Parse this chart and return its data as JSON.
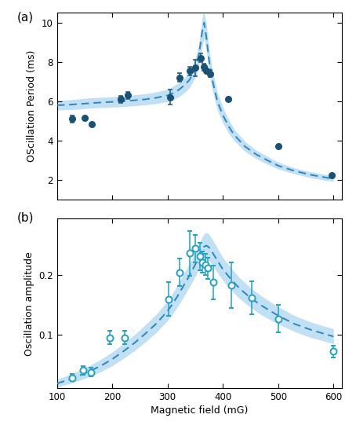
{
  "panel_a": {
    "data_x": [
      127,
      150,
      163,
      215,
      228,
      305,
      322,
      340,
      350,
      360,
      365,
      370,
      377,
      410,
      500,
      597
    ],
    "data_y": [
      5.1,
      5.15,
      4.85,
      6.1,
      6.3,
      6.2,
      7.2,
      7.55,
      7.7,
      8.2,
      7.75,
      7.55,
      7.4,
      6.1,
      3.7,
      2.25
    ],
    "data_yerr": [
      0.18,
      0.0,
      0.0,
      0.18,
      0.18,
      0.38,
      0.22,
      0.22,
      0.42,
      0.22,
      0.18,
      0.12,
      0.18,
      0.0,
      0.0,
      0.0
    ],
    "ylabel": "OScillation Period (ms)",
    "ylim": [
      1.0,
      10.5
    ],
    "yticks": [
      2,
      4,
      6,
      8,
      10
    ],
    "label": "(a)",
    "dot_color": "#1a5276",
    "theory_color": "#2e86c1",
    "band_color": "#aed6f1",
    "theory_x": [
      100,
      120,
      140,
      160,
      180,
      200,
      220,
      240,
      260,
      280,
      300,
      310,
      320,
      330,
      340,
      348,
      352,
      356,
      360,
      363,
      366,
      370,
      375,
      380,
      390,
      400,
      410,
      420,
      440,
      460,
      480,
      500,
      530,
      560,
      580,
      600
    ],
    "theory_y": [
      5.8,
      5.82,
      5.86,
      5.9,
      5.94,
      5.97,
      6.0,
      6.05,
      6.1,
      6.18,
      6.3,
      6.42,
      6.58,
      6.8,
      7.1,
      7.55,
      7.85,
      8.3,
      9.0,
      9.6,
      10.0,
      9.3,
      8.1,
      7.2,
      6.0,
      5.3,
      4.75,
      4.3,
      3.7,
      3.3,
      3.0,
      2.72,
      2.45,
      2.25,
      2.15,
      2.05
    ],
    "band_y_low": [
      5.55,
      5.57,
      5.6,
      5.65,
      5.68,
      5.7,
      5.73,
      5.77,
      5.82,
      5.88,
      5.98,
      6.08,
      6.22,
      6.42,
      6.7,
      7.1,
      7.35,
      7.75,
      8.35,
      8.85,
      9.2,
      8.6,
      7.5,
      6.65,
      5.55,
      4.9,
      4.4,
      4.0,
      3.45,
      3.08,
      2.8,
      2.55,
      2.3,
      2.1,
      2.0,
      1.92
    ],
    "band_y_high": [
      6.05,
      6.07,
      6.12,
      6.17,
      6.2,
      6.23,
      6.27,
      6.33,
      6.38,
      6.48,
      6.62,
      6.76,
      6.94,
      7.18,
      7.5,
      8.0,
      8.35,
      8.85,
      9.65,
      10.35,
      10.55,
      10.0,
      8.7,
      7.75,
      6.45,
      5.7,
      5.1,
      4.6,
      3.95,
      3.52,
      3.2,
      2.9,
      2.6,
      2.4,
      2.3,
      2.18
    ]
  },
  "panel_b": {
    "data_x": [
      127,
      148,
      162,
      195,
      222,
      302,
      322,
      340,
      350,
      358,
      363,
      368,
      373,
      383,
      415,
      452,
      500,
      600
    ],
    "data_y": [
      0.028,
      0.04,
      0.037,
      0.095,
      0.095,
      0.16,
      0.205,
      0.237,
      0.245,
      0.232,
      0.222,
      0.218,
      0.212,
      0.188,
      0.183,
      0.162,
      0.127,
      0.072
    ],
    "data_yerr": [
      0.006,
      0.007,
      0.007,
      0.011,
      0.011,
      0.028,
      0.023,
      0.038,
      0.023,
      0.023,
      0.018,
      0.018,
      0.018,
      0.028,
      0.038,
      0.028,
      0.023,
      0.01
    ],
    "ylabel": "Oscillation amplitude",
    "ylim": [
      0.01,
      0.295
    ],
    "yticks": [
      0.1,
      0.2
    ],
    "label": "(b)",
    "dot_color": "#21a1c4",
    "theory_color": "#2e86c1",
    "band_color": "#aed6f1",
    "theory_x": [
      100,
      120,
      140,
      160,
      180,
      200,
      220,
      240,
      260,
      280,
      300,
      310,
      320,
      330,
      340,
      350,
      355,
      360,
      363,
      366,
      370,
      375,
      380,
      390,
      400,
      415,
      430,
      450,
      470,
      500,
      530,
      560,
      600
    ],
    "theory_y": [
      0.018,
      0.024,
      0.031,
      0.039,
      0.048,
      0.059,
      0.072,
      0.086,
      0.102,
      0.119,
      0.14,
      0.153,
      0.168,
      0.184,
      0.2,
      0.218,
      0.228,
      0.237,
      0.243,
      0.248,
      0.25,
      0.247,
      0.24,
      0.225,
      0.21,
      0.193,
      0.178,
      0.162,
      0.149,
      0.132,
      0.118,
      0.108,
      0.097
    ],
    "band_y_low": [
      0.012,
      0.017,
      0.023,
      0.03,
      0.038,
      0.048,
      0.06,
      0.073,
      0.088,
      0.104,
      0.124,
      0.136,
      0.15,
      0.165,
      0.181,
      0.198,
      0.207,
      0.216,
      0.222,
      0.226,
      0.228,
      0.225,
      0.219,
      0.205,
      0.191,
      0.175,
      0.161,
      0.146,
      0.133,
      0.118,
      0.105,
      0.095,
      0.085
    ],
    "band_y_high": [
      0.025,
      0.032,
      0.04,
      0.049,
      0.059,
      0.071,
      0.085,
      0.1,
      0.117,
      0.135,
      0.157,
      0.171,
      0.187,
      0.204,
      0.22,
      0.239,
      0.249,
      0.259,
      0.265,
      0.27,
      0.272,
      0.269,
      0.262,
      0.246,
      0.23,
      0.212,
      0.196,
      0.179,
      0.165,
      0.147,
      0.132,
      0.121,
      0.11
    ]
  },
  "xlabel": "Magnetic field (mG)",
  "xlim": [
    100,
    615
  ],
  "xticks": [
    100,
    200,
    300,
    400,
    500,
    600
  ],
  "bg_color": "#ffffff",
  "fig_width": 4.54,
  "fig_height": 5.46,
  "dpi": 100
}
